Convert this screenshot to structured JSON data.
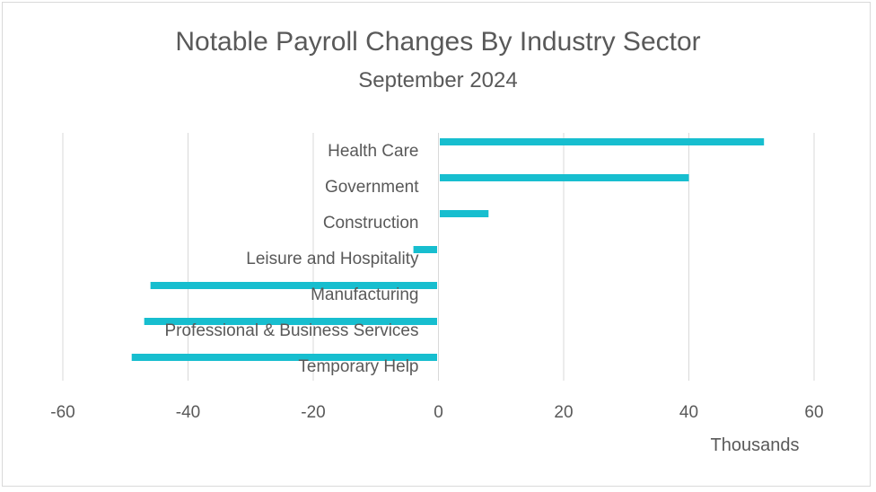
{
  "chart_data": {
    "type": "bar",
    "orientation": "horizontal",
    "title": "Notable Payroll Changes By Industry Sector",
    "subtitle": "September 2024",
    "xlabel": "Thousands",
    "ylabel": "",
    "xlim": [
      -60,
      60
    ],
    "xticks": [
      "-60",
      "-40",
      "-20",
      "0",
      "20",
      "40",
      "60"
    ],
    "grid": "vertical",
    "bar_color": "#17BECF",
    "categories": [
      "Health Care",
      "Government",
      "Construction",
      "Leisure and Hospitality",
      "Manufacturing",
      "Professional & Business Services",
      "Temporary Help"
    ],
    "values": [
      52,
      40,
      8,
      -4,
      -46,
      -47,
      -49
    ]
  }
}
